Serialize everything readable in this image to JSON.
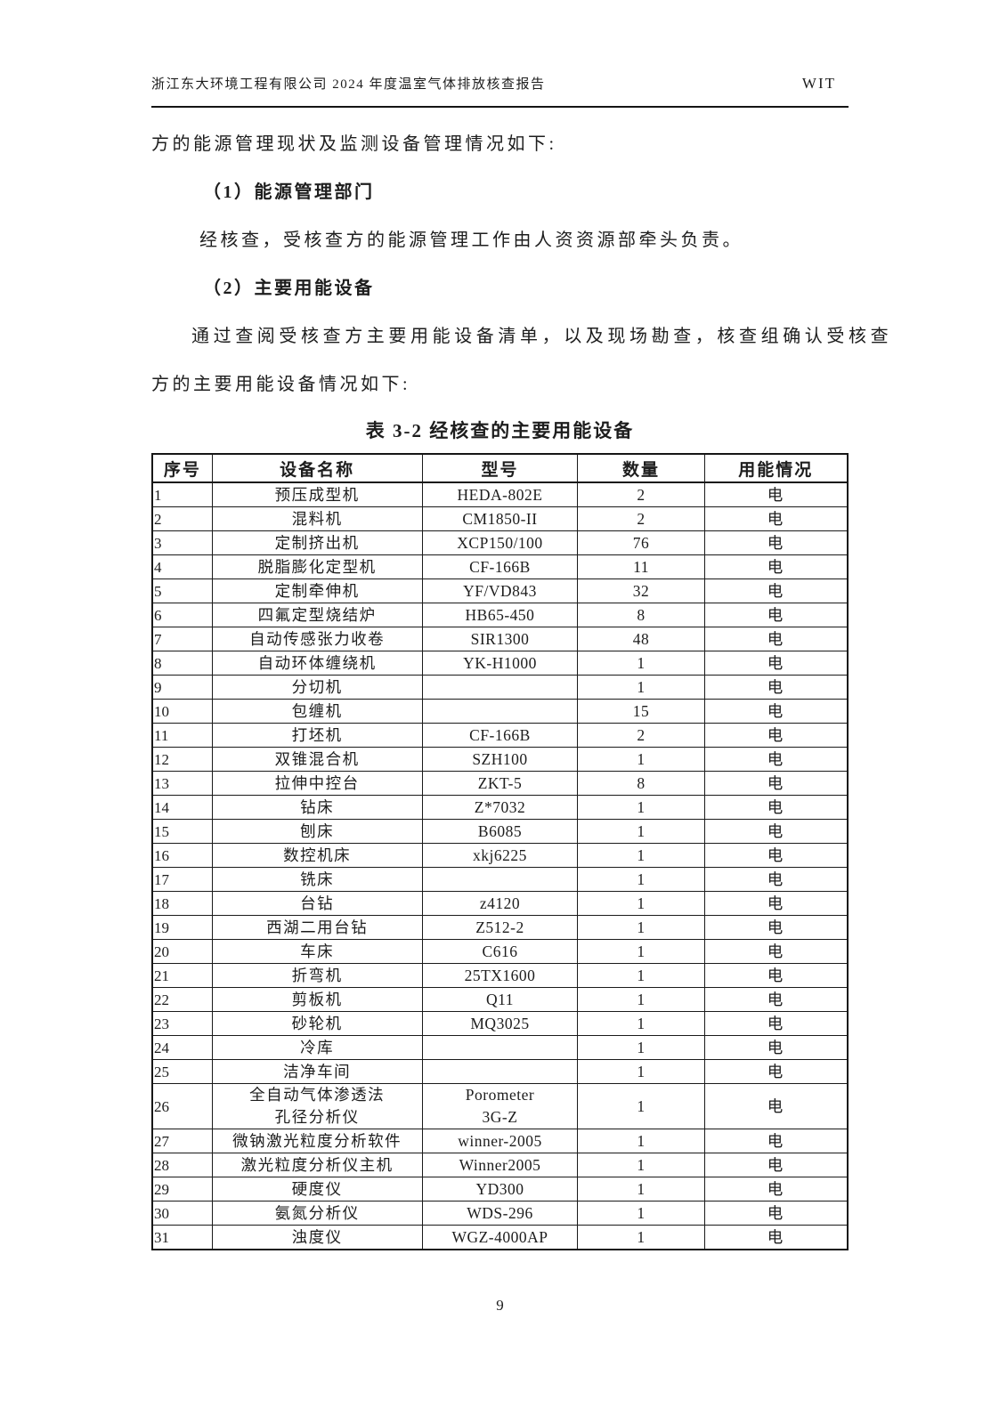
{
  "page_header": {
    "report_title": "浙江东大环境工程有限公司 2024 年度温室气体排放核查报告",
    "logo_text": "WIT"
  },
  "content": {
    "intro_line": "方的能源管理现状及监测设备管理情况如下:",
    "section1_heading": "（1）能源管理部门",
    "section1_body": "经核查，受核查方的能源管理工作由人资资源部牵头负责。",
    "section2_heading": "（2）主要用能设备",
    "section2_body_line1": "通过查阅受核查方主要用能设备清单，以及现场勘查，核查组确认受核查",
    "section2_body_line2": "方的主要用能设备情况如下:"
  },
  "table": {
    "title": "表 3-2 经核查的主要用能设备",
    "columns": [
      "序号",
      "设备名称",
      "型号",
      "数量",
      "用能情况"
    ],
    "column_keys": [
      "index",
      "device-name",
      "model",
      "quantity",
      "energy-type"
    ],
    "rows": [
      [
        "1",
        "预压成型机",
        "HEDA-802E",
        "2",
        "电"
      ],
      [
        "2",
        "混料机",
        "CM1850-II",
        "2",
        "电"
      ],
      [
        "3",
        "定制挤出机",
        "XCP150/100",
        "76",
        "电"
      ],
      [
        "4",
        "脱脂膨化定型机",
        "CF-166B",
        "11",
        "电"
      ],
      [
        "5",
        "定制牵伸机",
        "YF/VD843",
        "32",
        "电"
      ],
      [
        "6",
        "四氟定型烧结炉",
        "HB65-450",
        "8",
        "电"
      ],
      [
        "7",
        "自动传感张力收卷",
        "SIR1300",
        "48",
        "电"
      ],
      [
        "8",
        "自动环体缠绕机",
        "YK-H1000",
        "1",
        "电"
      ],
      [
        "9",
        "分切机",
        "",
        "1",
        "电"
      ],
      [
        "10",
        "包缠机",
        "",
        "15",
        "电"
      ],
      [
        "11",
        "打坯机",
        "CF-166B",
        "2",
        "电"
      ],
      [
        "12",
        "双锥混合机",
        "SZH100",
        "1",
        "电"
      ],
      [
        "13",
        "拉伸中控台",
        "ZKT-5",
        "8",
        "电"
      ],
      [
        "14",
        "钻床",
        "Z*7032",
        "1",
        "电"
      ],
      [
        "15",
        "刨床",
        "B6085",
        "1",
        "电"
      ],
      [
        "16",
        "数控机床",
        "xkj6225",
        "1",
        "电"
      ],
      [
        "17",
        "铣床",
        "",
        "1",
        "电"
      ],
      [
        "18",
        "台钻",
        "z4120",
        "1",
        "电"
      ],
      [
        "19",
        "西湖二用台钻",
        "Z512-2",
        "1",
        "电"
      ],
      [
        "20",
        "车床",
        "C616",
        "1",
        "电"
      ],
      [
        "21",
        "折弯机",
        "25TX1600",
        "1",
        "电"
      ],
      [
        "22",
        "剪板机",
        "Q11",
        "1",
        "电"
      ],
      [
        "23",
        "砂轮机",
        "MQ3025",
        "1",
        "电"
      ],
      [
        "24",
        "冷库",
        "",
        "1",
        "电"
      ],
      [
        "25",
        "洁净车间",
        "",
        "1",
        "电"
      ],
      [
        "26",
        "全自动气体渗透法\n孔径分析仪",
        "Porometer\n3G-Z",
        "1",
        "电"
      ],
      [
        "27",
        "微钠激光粒度分析软件",
        "winner-2005",
        "1",
        "电"
      ],
      [
        "28",
        "激光粒度分析仪主机",
        "Winner2005",
        "1",
        "电"
      ],
      [
        "29",
        "硬度仪",
        "YD300",
        "1",
        "电"
      ],
      [
        "30",
        "氨氮分析仪",
        "WDS-296",
        "1",
        "电"
      ],
      [
        "31",
        "浊度仪",
        "WGZ-4000AP",
        "1",
        "电"
      ]
    ]
  },
  "footer": {
    "page_number": "9"
  }
}
